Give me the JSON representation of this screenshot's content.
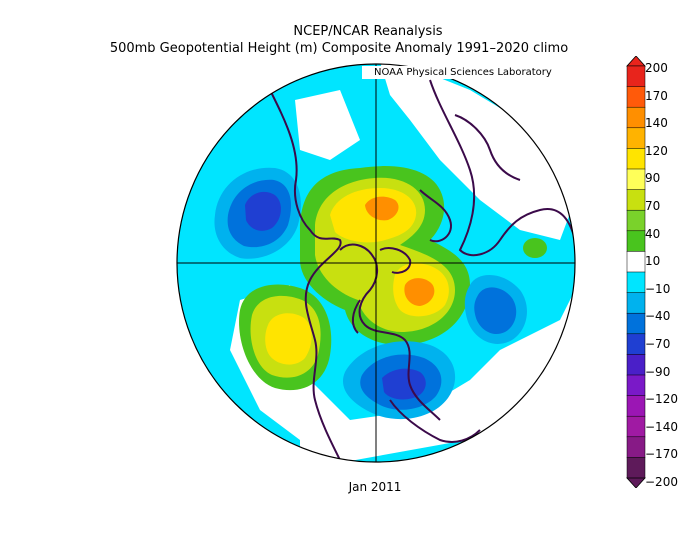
{
  "header": {
    "line1": "NCEP/NCAR Reanalysis",
    "line2": "500mb Geopotential Height (m) Composite Anomaly 1991–2020 climo",
    "credit": "NOAA Physical Sciences Laboratory"
  },
  "footer": {
    "period": "Jan 2011"
  },
  "legend": {
    "labels": [
      "200",
      "170",
      "140",
      "120",
      "90",
      "70",
      "40",
      "10",
      "−10",
      "−40",
      "−70",
      "−90",
      "−120",
      "−140",
      "−170",
      "−200"
    ],
    "colors_top_to_bottom": [
      "#e8241c",
      "#ff5a0a",
      "#ff8f00",
      "#ffb300",
      "#ffe400",
      "#ffff59",
      "#c8e010",
      "#7ad22b",
      "#49c41e",
      "#ffffff",
      "#00e5ff",
      "#00b2ee",
      "#0072dc",
      "#1f3fd2",
      "#4a1fc8",
      "#7a19c8",
      "#9b16b4",
      "#a01aa3",
      "#871a86",
      "#5e1a5a"
    ]
  },
  "map": {
    "projection": "north polar stereographic",
    "ocean_color": "#00e5ff",
    "coastline_color": "#3b0a4a"
  }
}
